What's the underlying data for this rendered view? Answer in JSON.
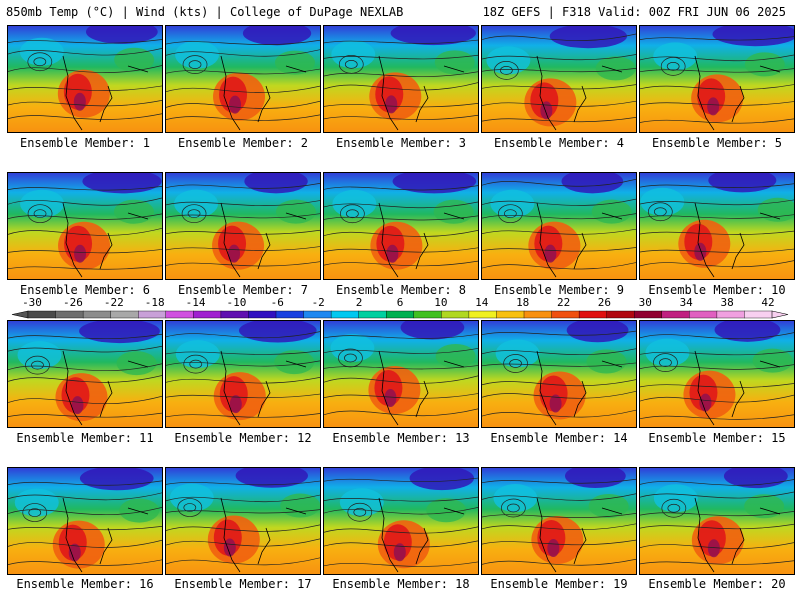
{
  "header": {
    "left": "850mb Temp (°C) | Wind (kts) | College of DuPage NEXLAB",
    "right": "18Z GEFS | F318 Valid: 00Z FRI JUN 06 2025"
  },
  "members": [
    "Ensemble Member: 1",
    "Ensemble Member: 2",
    "Ensemble Member: 3",
    "Ensemble Member: 4",
    "Ensemble Member: 5",
    "Ensemble Member: 6",
    "Ensemble Member: 7",
    "Ensemble Member: 8",
    "Ensemble Member: 9",
    "Ensemble Member: 10",
    "Ensemble Member: 11",
    "Ensemble Member: 12",
    "Ensemble Member: 13",
    "Ensemble Member: 14",
    "Ensemble Member: 15",
    "Ensemble Member: 16",
    "Ensemble Member: 17",
    "Ensemble Member: 18",
    "Ensemble Member: 19",
    "Ensemble Member: 20"
  ],
  "colorbar": {
    "labels": [
      "-30",
      "-26",
      "-22",
      "-18",
      "-14",
      "-10",
      "-6",
      "-2",
      "2",
      "6",
      "10",
      "14",
      "18",
      "22",
      "26",
      "30",
      "34",
      "38",
      "42"
    ],
    "colors": [
      "#4a4a4a",
      "#6e6e6e",
      "#8c8c8c",
      "#a8a8a8",
      "#c8a0d8",
      "#d050e0",
      "#a020d0",
      "#6010b0",
      "#3010c0",
      "#1840e0",
      "#1e88f0",
      "#00c8f0",
      "#00d0a0",
      "#00b050",
      "#40c020",
      "#b0d820",
      "#f0f020",
      "#f8c010",
      "#f89010",
      "#f05010",
      "#e01010",
      "#b00810",
      "#900030",
      "#c02080",
      "#e060c0",
      "#f0a0e0",
      "#f8d0f0"
    ]
  }
}
